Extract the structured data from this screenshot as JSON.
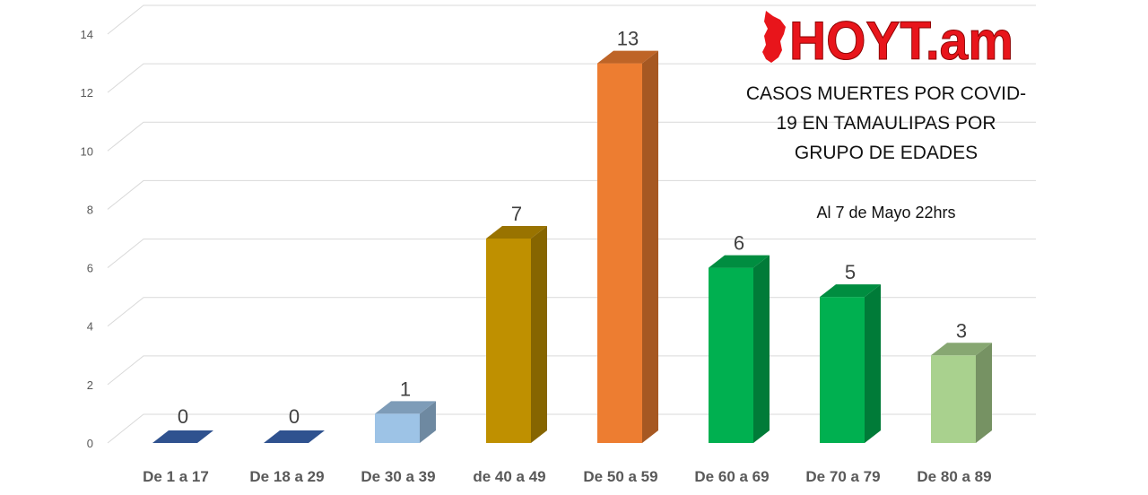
{
  "logo": {
    "text": "HOYT.am",
    "color": "#e8151b"
  },
  "title": "CASOS MUERTES POR COVID-19 EN TAMAULIPAS POR GRUPO DE EDADES",
  "subtitle": "Al 7 de Mayo 22hrs",
  "chart_data": {
    "type": "bar",
    "title": "CASOS MUERTES POR COVID-19 EN TAMAULIPAS POR GRUPO DE EDADES",
    "subtitle": "Al 7 de Mayo 22hrs",
    "xlabel": "",
    "ylabel": "",
    "categories": [
      "De 1 a 17",
      "De 18 a 29",
      "De 30 a 39",
      "de 40 a 49",
      "De 50 a 59",
      "De 60 a 69",
      "De 70 a 79",
      "De 80 a 89"
    ],
    "values": [
      0,
      0,
      1,
      7,
      13,
      6,
      5,
      3
    ],
    "bar_colors": [
      "#2f528f",
      "#2f528f",
      "#9dc3e6",
      "#bf9000",
      "#ed7d31",
      "#00b050",
      "#00b050",
      "#a9d18e"
    ],
    "ylim": [
      0,
      14
    ],
    "yticks": [
      0,
      2,
      4,
      6,
      8,
      10,
      12,
      14
    ],
    "grid": true,
    "data_labels": true,
    "style": "3d-column"
  }
}
